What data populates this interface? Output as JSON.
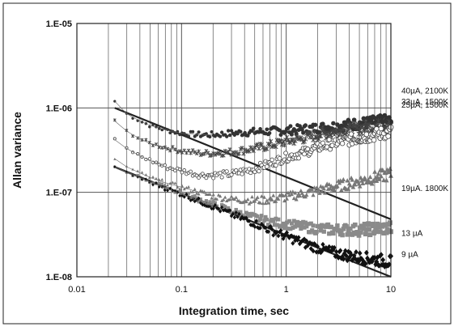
{
  "chart_data": {
    "type": "scatter",
    "xlabel": "Integration time, sec",
    "ylabel": "Allan variance",
    "x_scale": "log",
    "y_scale": "log",
    "xlim": [
      0.01,
      10
    ],
    "ylim": [
      1e-08,
      1e-05
    ],
    "x_ticks": [
      {
        "value": 0.01,
        "label": "0.01"
      },
      {
        "value": 0.1,
        "label": "0.1"
      },
      {
        "value": 1,
        "label": "1"
      },
      {
        "value": 10,
        "label": "10"
      }
    ],
    "y_ticks": [
      {
        "value": 1e-05,
        "label": "1.E-05"
      },
      {
        "value": 1e-06,
        "label": "1.E-06"
      },
      {
        "value": 1e-07,
        "label": "1.E-07"
      },
      {
        "value": 1e-08,
        "label": "1.E-08"
      }
    ],
    "grid": true,
    "colors": {
      "grid": "#555555",
      "data": "#222222",
      "frame": "#222222"
    },
    "series": [
      {
        "name": "40µA, 2100K",
        "marker": "circle",
        "points": [
          [
            0.023,
            1.2e-06
          ],
          [
            0.03,
            8.5e-07
          ],
          [
            0.04,
            7e-07
          ],
          [
            0.05,
            6.2e-07
          ],
          [
            0.07,
            5.5e-07
          ],
          [
            0.1,
            5e-07
          ],
          [
            0.15,
            4.8e-07
          ],
          [
            0.2,
            4.8e-07
          ],
          [
            0.3,
            5e-07
          ],
          [
            0.5,
            5.2e-07
          ],
          [
            0.7,
            5.3e-07
          ],
          [
            1,
            5.4e-07
          ],
          [
            1.5,
            5.6e-07
          ],
          [
            2,
            5.8e-07
          ],
          [
            3,
            6.1e-07
          ],
          [
            5,
            6.5e-07
          ],
          [
            7,
            6.8e-07
          ],
          [
            10,
            7e-07
          ]
        ]
      },
      {
        "name": "33µA, 1500K",
        "marker": "star",
        "points": [
          [
            0.023,
            7e-07
          ],
          [
            0.03,
            5.3e-07
          ],
          [
            0.04,
            4.3e-07
          ],
          [
            0.05,
            3.8e-07
          ],
          [
            0.07,
            3.4e-07
          ],
          [
            0.1,
            3.1e-07
          ],
          [
            0.15,
            2.9e-07
          ],
          [
            0.2,
            2.9e-07
          ],
          [
            0.3,
            3e-07
          ],
          [
            0.5,
            3.3e-07
          ],
          [
            0.7,
            3.6e-07
          ],
          [
            1,
            4e-07
          ],
          [
            1.5,
            4.4e-07
          ],
          [
            2,
            4.8e-07
          ],
          [
            3,
            5.2e-07
          ],
          [
            5,
            5.7e-07
          ],
          [
            7,
            6e-07
          ],
          [
            10,
            6.2e-07
          ]
        ]
      },
      {
        "name": "25µA, 1500K",
        "marker": "circle-open",
        "points": [
          [
            0.023,
            4.2e-07
          ],
          [
            0.03,
            3.3e-07
          ],
          [
            0.04,
            2.7e-07
          ],
          [
            0.05,
            2.4e-07
          ],
          [
            0.07,
            2e-07
          ],
          [
            0.1,
            1.8e-07
          ],
          [
            0.15,
            1.6e-07
          ],
          [
            0.2,
            1.6e-07
          ],
          [
            0.3,
            1.65e-07
          ],
          [
            0.5,
            1.9e-07
          ],
          [
            0.7,
            2.2e-07
          ],
          [
            1,
            2.6e-07
          ],
          [
            1.5,
            3e-07
          ],
          [
            2,
            3.4e-07
          ],
          [
            3,
            3.9e-07
          ],
          [
            5,
            4.4e-07
          ],
          [
            7,
            4.8e-07
          ],
          [
            10,
            5.2e-07
          ]
        ]
      },
      {
        "name": "19µA. 1800K",
        "marker": "triangle",
        "points": [
          [
            0.023,
            2.5e-07
          ],
          [
            0.03,
            2e-07
          ],
          [
            0.04,
            1.7e-07
          ],
          [
            0.05,
            1.5e-07
          ],
          [
            0.07,
            1.3e-07
          ],
          [
            0.1,
            1.15e-07
          ],
          [
            0.15,
            1e-07
          ],
          [
            0.2,
            9e-08
          ],
          [
            0.3,
            8.3e-08
          ],
          [
            0.5,
            8e-08
          ],
          [
            0.7,
            8.2e-08
          ],
          [
            1,
            8.8e-08
          ],
          [
            1.5,
            9.7e-08
          ],
          [
            2,
            1.05e-07
          ],
          [
            3,
            1.18e-07
          ],
          [
            5,
            1.35e-07
          ],
          [
            7,
            1.5e-07
          ],
          [
            10,
            1.65e-07
          ]
        ]
      },
      {
        "name": "13 µA",
        "marker": "square",
        "points": [
          [
            0.023,
            2e-07
          ],
          [
            0.03,
            1.75e-07
          ],
          [
            0.04,
            1.5e-07
          ],
          [
            0.05,
            1.35e-07
          ],
          [
            0.07,
            1.15e-07
          ],
          [
            0.1,
            9.8e-08
          ],
          [
            0.15,
            8.2e-08
          ],
          [
            0.2,
            7.2e-08
          ],
          [
            0.3,
            6e-08
          ],
          [
            0.5,
            5e-08
          ],
          [
            0.7,
            4.5e-08
          ],
          [
            1,
            4.2e-08
          ],
          [
            1.5,
            3.9e-08
          ],
          [
            2,
            3.7e-08
          ],
          [
            3,
            3.6e-08
          ],
          [
            5,
            3.6e-08
          ],
          [
            7,
            3.7e-08
          ],
          [
            10,
            3.8e-08
          ]
        ]
      },
      {
        "name": "9 µA",
        "marker": "diamond",
        "points": [
          [
            0.023,
            1.95e-07
          ],
          [
            0.03,
            1.7e-07
          ],
          [
            0.04,
            1.48e-07
          ],
          [
            0.05,
            1.32e-07
          ],
          [
            0.07,
            1.12e-07
          ],
          [
            0.1,
            9.5e-08
          ],
          [
            0.15,
            7.8e-08
          ],
          [
            0.2,
            6.8e-08
          ],
          [
            0.3,
            5.5e-08
          ],
          [
            0.5,
            4.3e-08
          ],
          [
            0.7,
            3.6e-08
          ],
          [
            1,
            3e-08
          ],
          [
            1.5,
            2.5e-08
          ],
          [
            2,
            2.2e-08
          ],
          [
            3,
            1.9e-08
          ],
          [
            5,
            1.7e-08
          ],
          [
            7,
            1.6e-08
          ],
          [
            10,
            1.5e-08
          ]
        ]
      }
    ],
    "fit_lines": [
      {
        "points": [
          [
            0.023,
            1e-06
          ],
          [
            10,
            4.8e-08
          ]
        ]
      },
      {
        "points": [
          [
            0.023,
            2e-07
          ],
          [
            10,
            1e-08
          ]
        ]
      }
    ]
  }
}
